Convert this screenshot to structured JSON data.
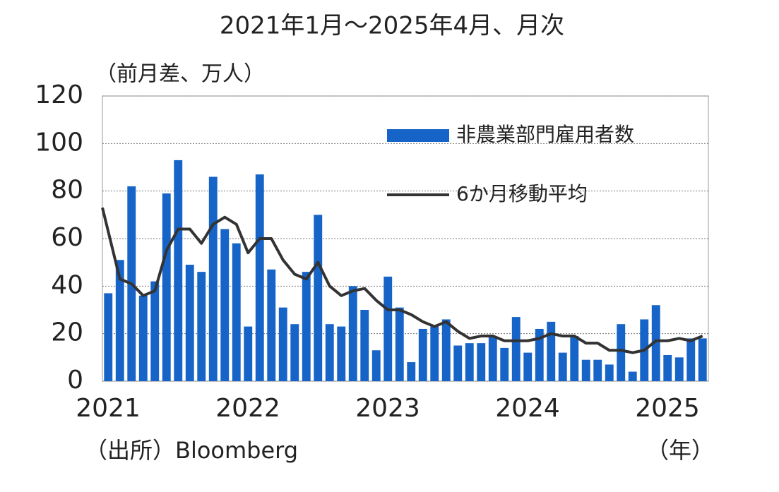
{
  "chart_data": {
    "type": "bar_line",
    "title": "2021年1月～2025年4月、月次",
    "y_label": "（前月差、万人）",
    "x_label": "（年）",
    "source": "（出所）Bloomberg",
    "categories": [
      "2021",
      null,
      null,
      null,
      null,
      null,
      null,
      null,
      null,
      null,
      null,
      null,
      "2022",
      null,
      null,
      null,
      null,
      null,
      null,
      null,
      null,
      null,
      null,
      null,
      "2023",
      null,
      null,
      null,
      null,
      null,
      null,
      null,
      null,
      null,
      null,
      null,
      "2024",
      null,
      null,
      null,
      null,
      null,
      null,
      null,
      null,
      null,
      null,
      null,
      "2025",
      null,
      null,
      null
    ],
    "series": [
      {
        "name": "非農業部門雇用者数",
        "type": "bar",
        "color": "#1664c8",
        "values": [
          37,
          51,
          82,
          36,
          42,
          79,
          93,
          49,
          46,
          86,
          64,
          58,
          23,
          87,
          47,
          31,
          24,
          46,
          70,
          24,
          23,
          40,
          30,
          13,
          44,
          31,
          8,
          22,
          23,
          26,
          15,
          16,
          16,
          19,
          14,
          27,
          12,
          22,
          25,
          12,
          19,
          9,
          9,
          7,
          24,
          4,
          26,
          32,
          11,
          10,
          18,
          18
        ]
      },
      {
        "name": "6か月移動平均",
        "type": "line",
        "color": "#333333",
        "values": [
          73,
          43,
          41,
          36,
          38,
          55,
          64,
          64,
          58,
          66,
          69,
          66,
          54,
          60,
          60,
          51,
          45,
          43,
          50,
          40,
          36,
          38,
          39,
          34,
          30,
          30,
          28,
          25,
          23,
          25,
          21,
          18,
          19,
          19,
          17,
          17,
          17,
          18,
          20,
          19,
          19,
          16,
          16,
          13,
          13,
          12,
          13,
          17,
          17,
          18,
          17,
          19
        ]
      }
    ],
    "ylim": [
      0,
      120
    ],
    "yticks": [
      0,
      20,
      40,
      60,
      80,
      100,
      120
    ],
    "grid": true,
    "legend": "top-right"
  }
}
